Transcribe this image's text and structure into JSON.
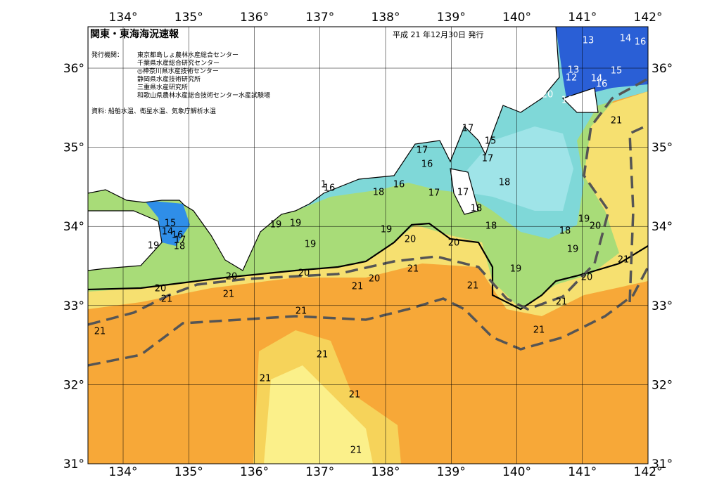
{
  "header": {
    "title": "関東・東海海況速報",
    "date": "平成 21 年12月30日 発行"
  },
  "info": {
    "issuer_label": "発行機関：",
    "issuers": [
      "東京都島しょ農林水産総合センター",
      "千葉県水産総合研究センター",
      "◎神奈川県水産技術センター",
      "静岡県水産技術研究所",
      "三重県水産研究所",
      "和歌山県農林水産総合技術センター水産試験場"
    ],
    "source": "資料: 船舶水温、衛星水温、気象庁解析水温"
  },
  "axes": {
    "lon_labels": [
      "134°",
      "135°",
      "136°",
      "137°",
      "138°",
      "139°",
      "140°",
      "141°",
      "142°"
    ],
    "lat_labels": [
      "36°",
      "35°",
      "34°",
      "33°",
      "32°",
      "31°"
    ]
  },
  "contour_labels": [
    "13",
    "14",
    "16",
    "13",
    "12",
    "14",
    "15",
    "16",
    "20",
    "16",
    "5",
    "21",
    "17",
    "15",
    "17",
    "17",
    "16",
    "16",
    "1",
    "16",
    "18",
    "17",
    "17",
    "18",
    "18",
    "18",
    "19",
    "19",
    "19",
    "20",
    "20",
    "19",
    "18",
    "19",
    "20",
    "19",
    "21",
    "19",
    "20",
    "20",
    "21",
    "20",
    "21",
    "21",
    "20",
    "20",
    "21",
    "21",
    "21",
    "21",
    "21",
    "21",
    "21",
    "21",
    "21",
    "21",
    "15",
    "14",
    "16",
    "17",
    "18",
    "19"
  ]
}
